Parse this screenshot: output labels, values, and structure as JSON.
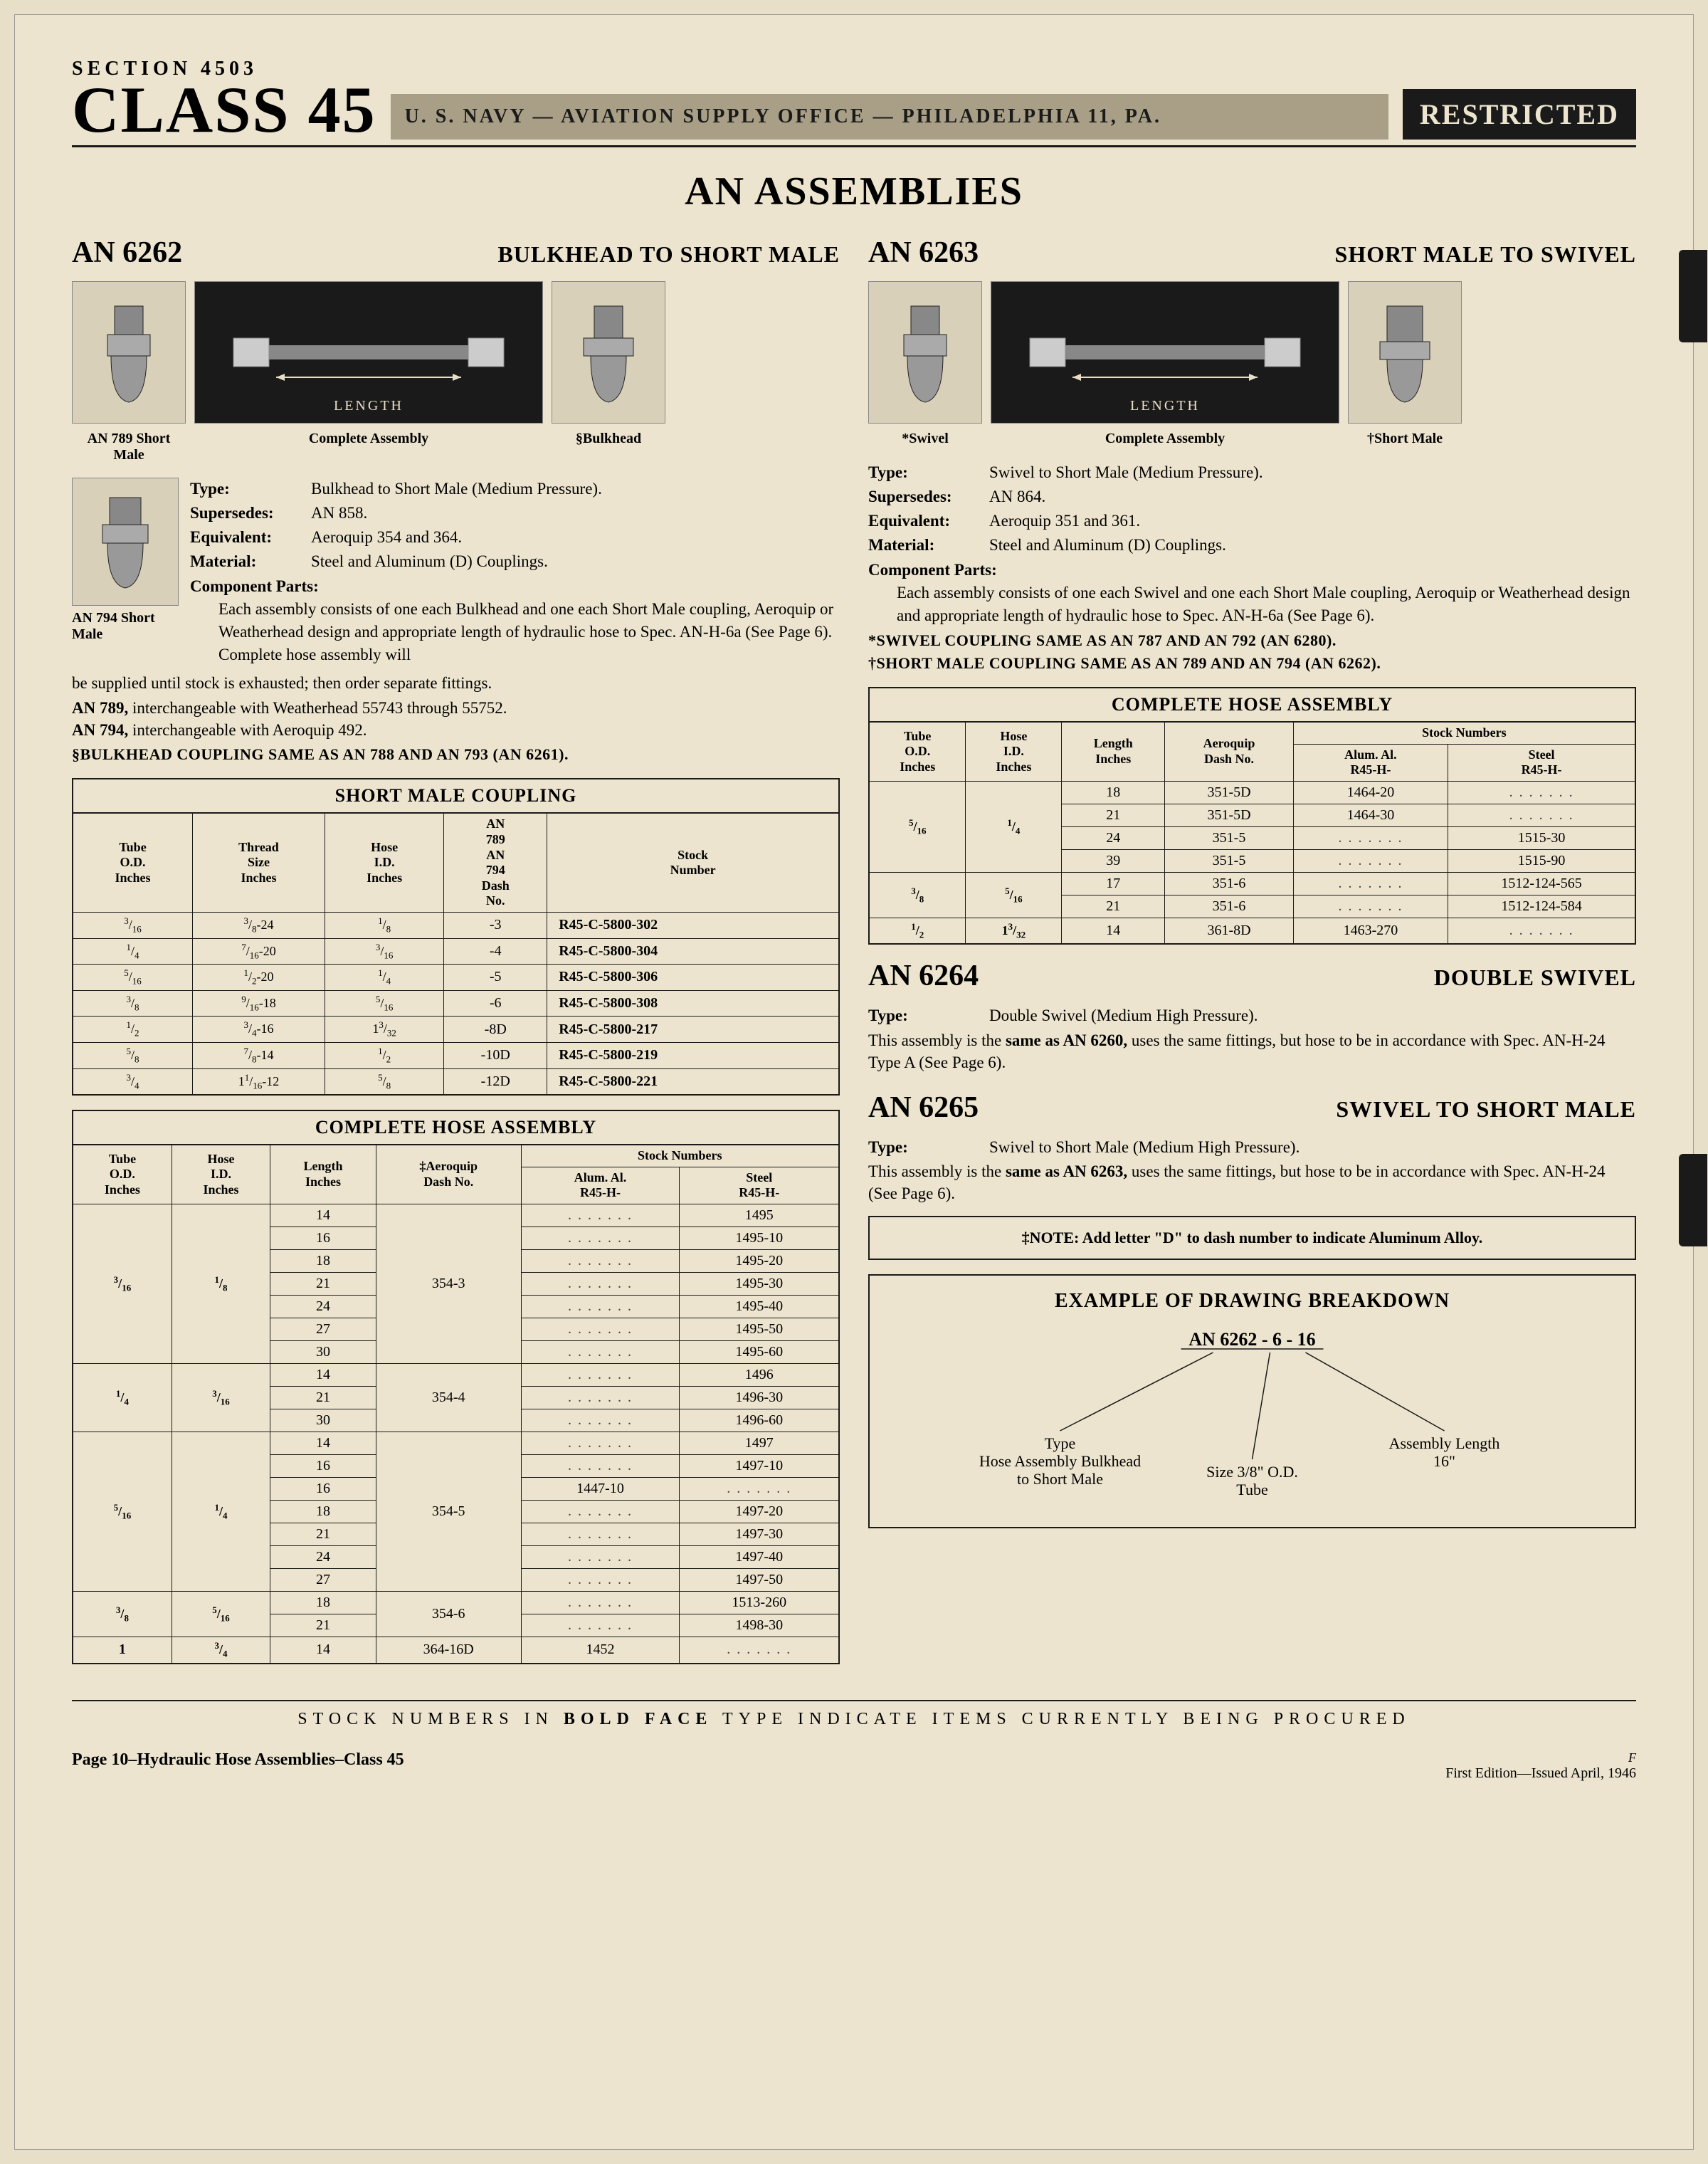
{
  "header": {
    "section": "SECTION 4503",
    "class": "CLASS 45",
    "bar": "U. S. NAVY — AVIATION SUPPLY OFFICE — PHILADELPHIA 11, PA.",
    "restricted": "RESTRICTED"
  },
  "mainTitle": "AN ASSEMBLIES",
  "left": {
    "an": "AN 6262",
    "title": "BULKHEAD TO SHORT MALE",
    "captions": {
      "a": "AN 789 Short Male",
      "b": "Complete Assembly",
      "c": "§Bulkhead",
      "d": "AN 794 Short Male"
    },
    "lengthLabel": "LENGTH",
    "spec": {
      "type": "Bulkhead to Short Male (Medium Pressure).",
      "supersedes": "AN 858.",
      "equivalent": "Aeroquip 354 and 364.",
      "material": "Steel and Aluminum (D) Couplings.",
      "compTitle": "Component Parts:",
      "compText": "Each assembly consists of one each Bulkhead and one each Short Male coupling, Aeroquip or Weatherhead design and appropriate length of hydraulic hose to Spec. AN-H-6a (See Page 6). Complete hose assembly will",
      "compCont": "be supplied until stock is exhausted; then order separate fittings.",
      "an789": "AN 789, interchangeable with Weatherhead 55743 through 55752.",
      "an794": "AN 794, interchangeable with Aeroquip 492.",
      "bulkNote": "§BULKHEAD COUPLING SAME AS AN 788 AND AN 793 (AN 6261)."
    },
    "shortMaleTable": {
      "caption": "SHORT MALE COUPLING",
      "headers": [
        "Tube O.D. Inches",
        "Thread Size Inches",
        "Hose I.D. Inches",
        "AN 789 AN 794 Dash No.",
        "Stock Number"
      ],
      "rows": [
        [
          "3/16",
          "3/8-24",
          "1/8",
          "-3",
          "R45-C-5800-302"
        ],
        [
          "1/4",
          "7/16-20",
          "3/16",
          "-4",
          "R45-C-5800-304"
        ],
        [
          "5/16",
          "1/2-20",
          "1/4",
          "-5",
          "R45-C-5800-306"
        ],
        [
          "3/8",
          "9/16-18",
          "5/16",
          "-6",
          "R45-C-5800-308"
        ],
        [
          "1/2",
          "3/4-16",
          "13/32",
          "-8D",
          "R45-C-5800-217"
        ],
        [
          "5/8",
          "7/8-14",
          "1/2",
          "-10D",
          "R45-C-5800-219"
        ],
        [
          "3/4",
          "1 1/16-12",
          "5/8",
          "-12D",
          "R45-C-5800-221"
        ]
      ]
    },
    "hoseTable": {
      "caption": "COMPLETE HOSE ASSEMBLY",
      "groups": [
        {
          "od": "3/16",
          "id": "1/8",
          "dash": "354-3",
          "rows": [
            [
              "14",
              "",
              "1495"
            ],
            [
              "16",
              "",
              "1495-10"
            ],
            [
              "18",
              "",
              "1495-20"
            ],
            [
              "21",
              "",
              "1495-30"
            ],
            [
              "24",
              "",
              "1495-40"
            ],
            [
              "27",
              "",
              "1495-50"
            ],
            [
              "30",
              "",
              "1495-60"
            ]
          ]
        },
        {
          "od": "1/4",
          "id": "3/16",
          "dash": "354-4",
          "rows": [
            [
              "14",
              "",
              "1496"
            ],
            [
              "21",
              "",
              "1496-30"
            ],
            [
              "30",
              "",
              "1496-60"
            ]
          ]
        },
        {
          "od": "5/16",
          "id": "1/4",
          "dash": "354-5",
          "rows": [
            [
              "14",
              "",
              "1497"
            ],
            [
              "16",
              "",
              "1497-10"
            ],
            [
              "16",
              "1447-10",
              ""
            ],
            [
              "18",
              "",
              "1497-20"
            ],
            [
              "21",
              "",
              "1497-30"
            ],
            [
              "24",
              "",
              "1497-40"
            ],
            [
              "27",
              "",
              "1497-50"
            ]
          ]
        },
        {
          "od": "3/8",
          "id": "5/16",
          "dash": "354-6",
          "rows": [
            [
              "18",
              "",
              "1513-260"
            ],
            [
              "21",
              "",
              "1498-30"
            ]
          ]
        },
        {
          "od": "1",
          "id": "3/4",
          "dash": "364-16D",
          "rows": [
            [
              "14",
              "1452",
              ""
            ]
          ]
        }
      ]
    }
  },
  "right": {
    "an": "AN 6263",
    "title": "SHORT MALE TO SWIVEL",
    "captions": {
      "a": "*Swivel",
      "b": "Complete Assembly",
      "c": "†Short Male"
    },
    "lengthLabel": "LENGTH",
    "spec": {
      "type": "Swivel to Short Male (Medium Pressure).",
      "supersedes": "AN 864.",
      "equivalent": "Aeroquip 351 and 361.",
      "material": "Steel and Aluminum (D) Couplings.",
      "compTitle": "Component Parts:",
      "compText": "Each assembly consists of one each Swivel and one each Short Male coupling, Aeroquip or Weatherhead design and appropriate length of hydraulic hose to Spec. AN-H-6a (See Page 6).",
      "swivelNote": "*SWIVEL COUPLING SAME AS AN 787 AND AN 792 (AN 6280).",
      "shortNote": "†SHORT MALE COUPLING SAME AS AN 789 AND AN 794 (AN 6262)."
    },
    "hoseTable": {
      "caption": "COMPLETE HOSE ASSEMBLY",
      "groups": [
        {
          "od": "5/16",
          "id": "1/4",
          "rows": [
            [
              "18",
              "351-5D",
              "1464-20",
              ""
            ],
            [
              "21",
              "351-5D",
              "1464-30",
              ""
            ],
            [
              "24",
              "351-5",
              "",
              "1515-30"
            ],
            [
              "39",
              "351-5",
              "",
              "1515-90"
            ]
          ]
        },
        {
          "od": "3/8",
          "id": "5/16",
          "rows": [
            [
              "17",
              "351-6",
              "",
              "1512-124-565"
            ],
            [
              "21",
              "351-6",
              "",
              "1512-124-584"
            ]
          ]
        },
        {
          "od": "1/2",
          "id": "13/32",
          "rows": [
            [
              "14",
              "361-8D",
              "1463-270",
              ""
            ]
          ]
        }
      ]
    },
    "an6264": {
      "num": "AN 6264",
      "title": "DOUBLE SWIVEL",
      "type": "Double Swivel (Medium High Pressure).",
      "body": "This assembly is the same as AN 6260, uses the same fittings, but hose to be in accordance with Spec. AN-H-24 Type A (See Page 6)."
    },
    "an6265": {
      "num": "AN 6265",
      "title": "SWIVEL TO SHORT MALE",
      "type": "Swivel to Short Male (Medium High Pressure).",
      "body": "This assembly is the same as AN 6263, uses the same fittings, but hose to be in accordance with Spec. AN-H-24 (See Page 6)."
    },
    "note": "‡NOTE: Add letter \"D\" to dash number to indicate Aluminum Alloy.",
    "example": {
      "title": "EXAMPLE OF DRAWING BREAKDOWN",
      "code": "AN 6262 - 6 - 16",
      "l1": "Type",
      "l2": "Hose Assembly Bulkhead",
      "l3": "to Short Male",
      "m1": "Size 3/8\" O.D.",
      "m2": "Tube",
      "r1": "Assembly Length",
      "r2": "16\""
    }
  },
  "footerRule": {
    "p1": "STOCK NUMBERS IN ",
    "p2": "BOLD FACE",
    "p3": " TYPE INDICATE ITEMS CURRENTLY BEING PROCURED"
  },
  "footer": {
    "page": "Page 10–Hydraulic Hose Assemblies–Class 45",
    "f": "F",
    "edition": "First Edition—Issued April, 1946"
  },
  "style": {
    "pageBg": "#ece4ce",
    "ink": "#1a1a1a",
    "barBg": "#a89f86"
  }
}
